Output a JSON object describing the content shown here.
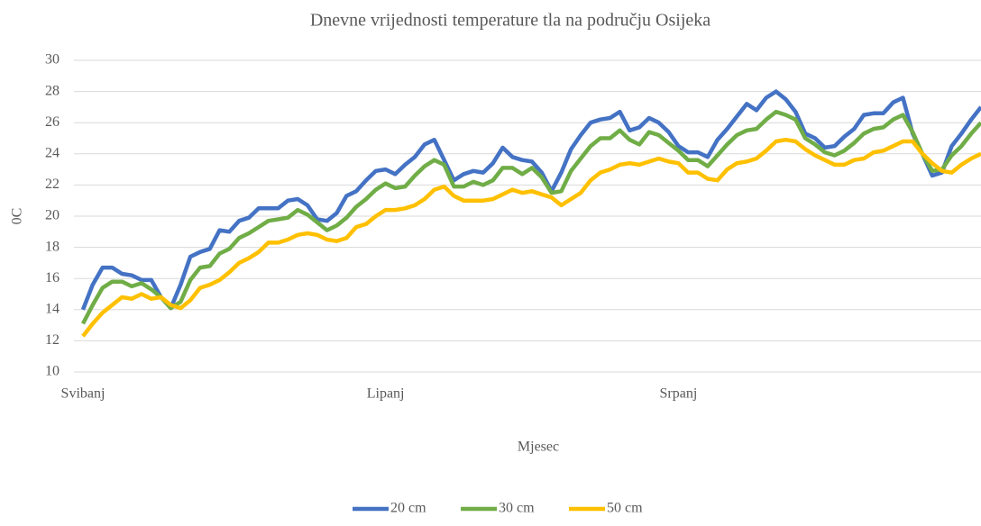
{
  "chart_data": {
    "type": "line",
    "title": "Dnevne vrijednosti temperature tla na području Osijeka",
    "x_label": "Mjesec",
    "y_label": "0C",
    "categories": [
      "Svibanj",
      null,
      null,
      null,
      null,
      null,
      null,
      null,
      null,
      null,
      null,
      null,
      null,
      null,
      null,
      null,
      null,
      null,
      null,
      null,
      null,
      null,
      null,
      null,
      null,
      null,
      null,
      null,
      null,
      null,
      null,
      "Lipanj",
      null,
      null,
      null,
      null,
      null,
      null,
      null,
      null,
      null,
      null,
      null,
      null,
      null,
      null,
      null,
      null,
      null,
      null,
      null,
      null,
      null,
      null,
      null,
      null,
      null,
      null,
      null,
      null,
      null,
      "Srpanj",
      null,
      null,
      null,
      null,
      null,
      null,
      null,
      null,
      null,
      null,
      null,
      null,
      null,
      null,
      null,
      null,
      null,
      null,
      null,
      null,
      null,
      null,
      null,
      null,
      null,
      null,
      null,
      null,
      null,
      null,
      null
    ],
    "series": [
      {
        "name": "20 cm",
        "color": "#4472c4",
        "values": [
          14.0,
          15.6,
          16.7,
          16.7,
          16.3,
          16.2,
          15.9,
          15.9,
          14.8,
          14.1,
          15.6,
          17.4,
          17.7,
          17.9,
          19.1,
          19.0,
          19.7,
          19.9,
          20.5,
          20.5,
          20.5,
          21.0,
          21.1,
          20.7,
          19.8,
          19.7,
          20.2,
          21.3,
          21.6,
          22.3,
          22.9,
          23.0,
          22.7,
          23.3,
          23.8,
          24.6,
          24.9,
          23.6,
          22.3,
          22.7,
          22.9,
          22.8,
          23.4,
          24.4,
          23.8,
          23.6,
          23.5,
          22.8,
          21.6,
          22.8,
          24.3,
          25.2,
          26.0,
          26.2,
          26.3,
          26.7,
          25.5,
          25.7,
          26.3,
          26.0,
          25.4,
          24.5,
          24.1,
          24.1,
          23.8,
          24.9,
          25.6,
          26.4,
          27.2,
          26.8,
          27.6,
          28.0,
          27.5,
          26.7,
          25.3,
          25.0,
          24.4,
          24.5,
          25.1,
          25.6,
          26.5,
          26.6,
          26.6,
          27.3,
          27.6,
          25.3,
          24.0,
          22.6,
          22.8,
          24.5,
          25.3,
          26.2,
          27.0
        ]
      },
      {
        "name": "30 cm",
        "color": "#70ad47",
        "values": [
          13.1,
          14.3,
          15.4,
          15.8,
          15.8,
          15.5,
          15.7,
          15.3,
          14.8,
          14.1,
          14.5,
          15.9,
          16.7,
          16.8,
          17.6,
          17.9,
          18.6,
          18.9,
          19.3,
          19.7,
          19.8,
          19.9,
          20.4,
          20.1,
          19.6,
          19.1,
          19.4,
          19.9,
          20.6,
          21.1,
          21.7,
          22.1,
          21.8,
          21.9,
          22.6,
          23.2,
          23.6,
          23.3,
          21.9,
          21.9,
          22.2,
          22.0,
          22.3,
          23.1,
          23.1,
          22.7,
          23.1,
          22.5,
          21.5,
          21.6,
          22.9,
          23.7,
          24.5,
          25.0,
          25.0,
          25.5,
          24.9,
          24.6,
          25.4,
          25.2,
          24.7,
          24.2,
          23.6,
          23.6,
          23.2,
          23.9,
          24.6,
          25.2,
          25.5,
          25.6,
          26.2,
          26.7,
          26.5,
          26.2,
          25.0,
          24.6,
          24.1,
          23.9,
          24.2,
          24.7,
          25.3,
          25.6,
          25.7,
          26.2,
          26.5,
          25.4,
          24.0,
          22.9,
          23.0,
          23.9,
          24.5,
          25.3,
          26.0
        ]
      },
      {
        "name": "50 cm",
        "color": "#ffc000",
        "values": [
          12.3,
          13.1,
          13.8,
          14.3,
          14.8,
          14.7,
          15.0,
          14.7,
          14.8,
          14.3,
          14.1,
          14.6,
          15.4,
          15.6,
          15.9,
          16.4,
          17.0,
          17.3,
          17.7,
          18.3,
          18.3,
          18.5,
          18.8,
          18.9,
          18.8,
          18.5,
          18.4,
          18.6,
          19.3,
          19.5,
          20.0,
          20.4,
          20.4,
          20.5,
          20.7,
          21.1,
          21.7,
          21.9,
          21.3,
          21.0,
          21.0,
          21.0,
          21.1,
          21.4,
          21.7,
          21.5,
          21.6,
          21.4,
          21.2,
          20.7,
          21.1,
          21.5,
          22.3,
          22.8,
          23.0,
          23.3,
          23.4,
          23.3,
          23.5,
          23.7,
          23.5,
          23.4,
          22.8,
          22.8,
          22.4,
          22.3,
          23.0,
          23.4,
          23.5,
          23.7,
          24.2,
          24.8,
          24.9,
          24.8,
          24.3,
          23.9,
          23.6,
          23.3,
          23.3,
          23.6,
          23.7,
          24.1,
          24.2,
          24.5,
          24.8,
          24.8,
          24.0,
          23.4,
          22.9,
          22.8,
          23.3,
          23.7,
          24.0
        ]
      }
    ],
    "ylim": [
      10,
      30
    ],
    "yticks": [
      10,
      12,
      14,
      16,
      18,
      20,
      22,
      24,
      26,
      28,
      30
    ],
    "grid": true,
    "legend": "bottom"
  }
}
